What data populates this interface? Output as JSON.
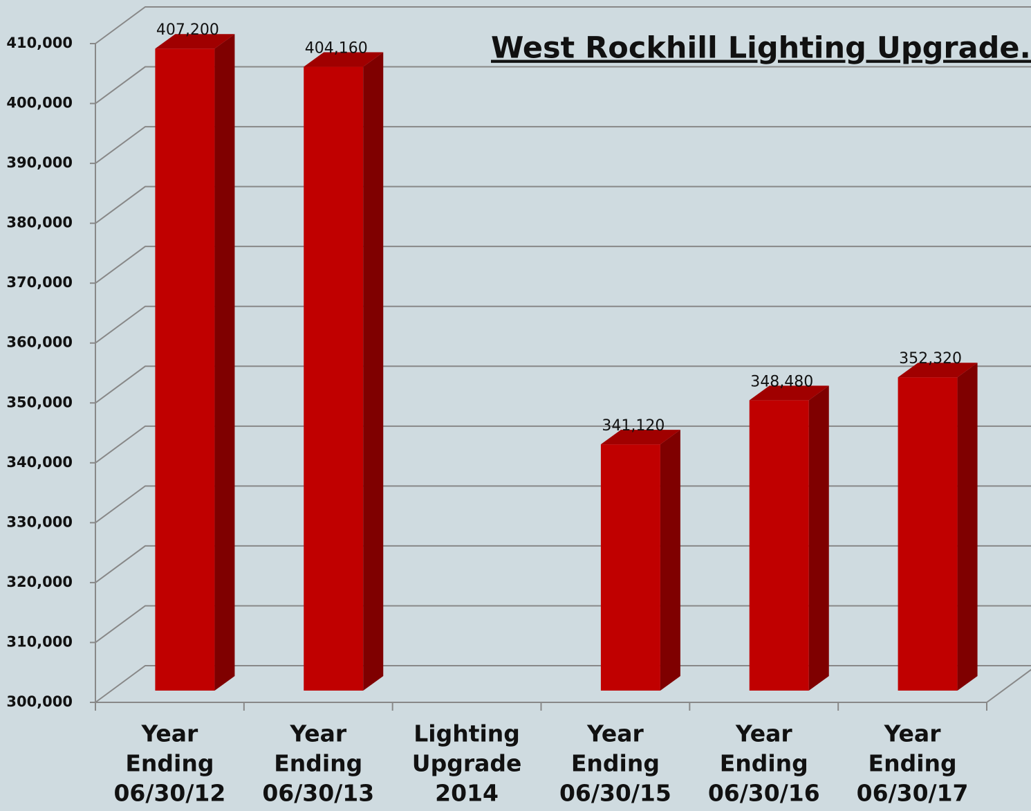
{
  "chart_data": {
    "type": "bar3d",
    "title": "West Rockhill Lighting Upgrade. kW",
    "categories": [
      [
        "Year",
        "Ending",
        "06/30/12"
      ],
      [
        "Year",
        "Ending",
        "06/30/13"
      ],
      [
        "Lighting",
        "Upgrade",
        "2014"
      ],
      [
        "Year",
        "Ending",
        "06/30/15"
      ],
      [
        "Year",
        "Ending",
        "06/30/16"
      ],
      [
        "Year",
        "Ending",
        "06/30/17"
      ]
    ],
    "values": [
      407200,
      404160,
      null,
      341120,
      348480,
      352320
    ],
    "value_labels": [
      "407,200",
      "404,160",
      null,
      "341,120",
      "348,480",
      "352,320"
    ],
    "color": "#c00000",
    "ylim": [
      300000,
      410000
    ],
    "yticks": [
      {
        "value": 300000,
        "label": "300,000"
      },
      {
        "value": 310000,
        "label": "310,000"
      },
      {
        "value": 320000,
        "label": "320,000"
      },
      {
        "value": 330000,
        "label": "330,000"
      },
      {
        "value": 340000,
        "label": "340,000"
      },
      {
        "value": 350000,
        "label": "350,000"
      },
      {
        "value": 360000,
        "label": "360,000"
      },
      {
        "value": 370000,
        "label": "370,000"
      },
      {
        "value": 380000,
        "label": "380,000"
      },
      {
        "value": 390000,
        "label": "390,000"
      },
      {
        "value": 400000,
        "label": "400,000"
      },
      {
        "value": 410000,
        "label": "410,000"
      }
    ],
    "grid": true
  }
}
